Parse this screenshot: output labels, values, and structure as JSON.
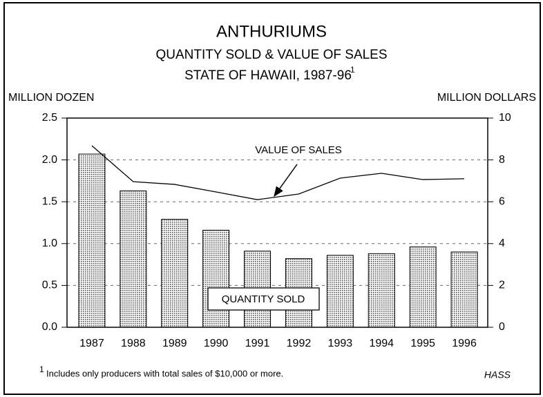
{
  "chart_data": {
    "type": "bar",
    "title": "ANTHURIUMS",
    "subtitle": [
      "QUANTITY SOLD & VALUE OF SALES",
      "STATE OF HAWAII, 1987-96"
    ],
    "footnote_marker": "1",
    "footnote": "Includes only producers with total sales of $10,000 or more.",
    "source": "HASS",
    "ylabel": "MILLION DOZEN",
    "y2label": "MILLION DOLLARS",
    "categories": [
      "1987",
      "1988",
      "1989",
      "1990",
      "1991",
      "1992",
      "1993",
      "1994",
      "1995",
      "1996"
    ],
    "series": [
      {
        "name": "QUANTITY SOLD",
        "type": "bar",
        "color": "#555555",
        "values": [
          2.07,
          1.63,
          1.29,
          1.16,
          0.91,
          0.82,
          0.86,
          0.88,
          0.96,
          0.9
        ]
      },
      {
        "name": "VALUE OF SALES",
        "type": "line",
        "axis": "y2",
        "color": "#000000",
        "values": [
          8.68,
          6.96,
          6.83,
          6.47,
          6.1,
          6.37,
          7.13,
          7.36,
          7.06,
          7.1
        ]
      }
    ],
    "ylim": [
      0,
      2.5
    ],
    "yticks": [
      {
        "value": 0,
        "label": "0.0"
      },
      0.5,
      {
        "value": 1,
        "label": "1.0"
      },
      1.5,
      {
        "value": 2,
        "label": "2.0"
      },
      2.5
    ],
    "y2lim": [
      0,
      10
    ],
    "y2ticks": [
      0,
      2,
      4,
      6,
      8,
      10
    ],
    "grid": true
  }
}
